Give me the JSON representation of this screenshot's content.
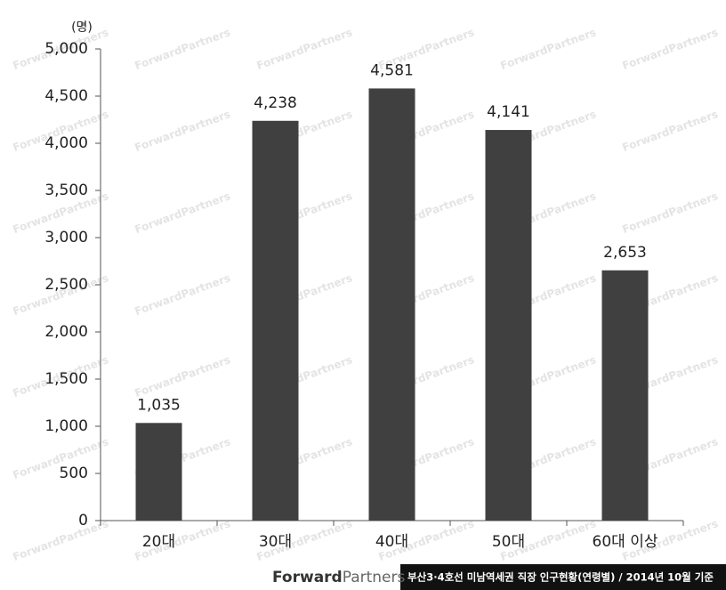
{
  "chart_data": {
    "type": "bar",
    "y_label": "(명)",
    "categories": [
      "20대",
      "30대",
      "40대",
      "50대",
      "60대 이상"
    ],
    "values": [
      1035,
      4238,
      4581,
      4141,
      2653
    ],
    "value_labels": [
      "1,035",
      "4,238",
      "4,581",
      "4,141",
      "2,653"
    ],
    "color": "#404040",
    "ylim": [
      0,
      5000
    ],
    "yticks": [
      0,
      500,
      {
        "value": 1000,
        "label": "1,000"
      },
      {
        "value": 1500,
        "label": "1,500"
      },
      {
        "value": 2000,
        "label": "2,000"
      },
      {
        "value": 2500,
        "label": "2,500"
      },
      {
        "value": 3000,
        "label": "3,000"
      },
      {
        "value": 3500,
        "label": "3,500"
      },
      {
        "value": 4000,
        "label": "4,000"
      },
      {
        "value": 4500,
        "label": "4,500"
      },
      {
        "value": 5000,
        "label": "5,000"
      }
    ],
    "grid": false
  },
  "watermark": "ForwardPartners",
  "footer": {
    "brand_primary": "Forward",
    "brand_secondary": "Partners",
    "caption": "부산3·4호선 미남역세권 직장 인구현황(연령별) / 2014년 10월 기준"
  }
}
